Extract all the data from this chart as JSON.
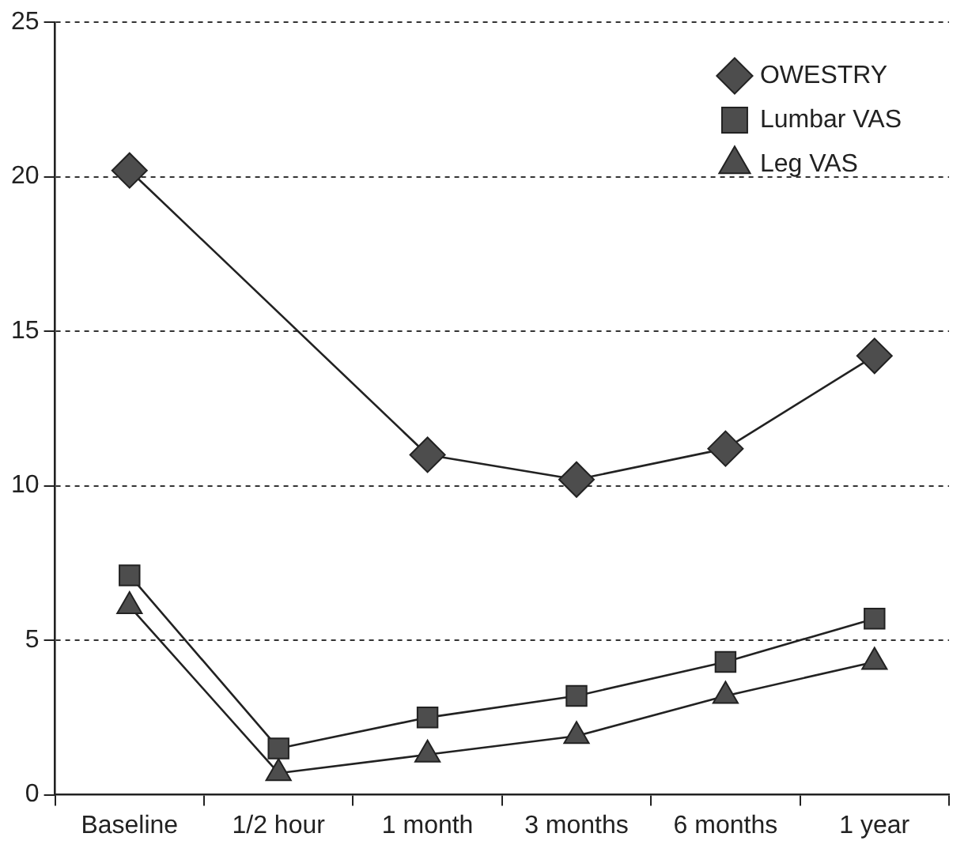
{
  "chart_data": {
    "type": "line",
    "categories": [
      "Baseline",
      "1/2 hour",
      "1 month",
      "3 months",
      "6 months",
      "1 year"
    ],
    "series": [
      {
        "name": "OWESTRY",
        "color": "#4d4d4d",
        "marker": "diamond",
        "values": [
          20.2,
          null,
          11.0,
          10.2,
          11.2,
          14.2
        ]
      },
      {
        "name": "Lumbar VAS",
        "color": "#4d4d4d",
        "marker": "square",
        "values": [
          7.1,
          1.5,
          2.5,
          3.2,
          4.3,
          5.7
        ]
      },
      {
        "name": "Leg VAS",
        "color": "#4d4d4d",
        "marker": "triangle",
        "values": [
          6.1,
          0.7,
          1.3,
          1.9,
          3.2,
          4.3
        ]
      }
    ],
    "ylim": [
      0,
      25
    ],
    "yticks": [
      0,
      5,
      10,
      15,
      20,
      25
    ],
    "grid": "y",
    "legend": "top right",
    "line_style": "solid"
  }
}
